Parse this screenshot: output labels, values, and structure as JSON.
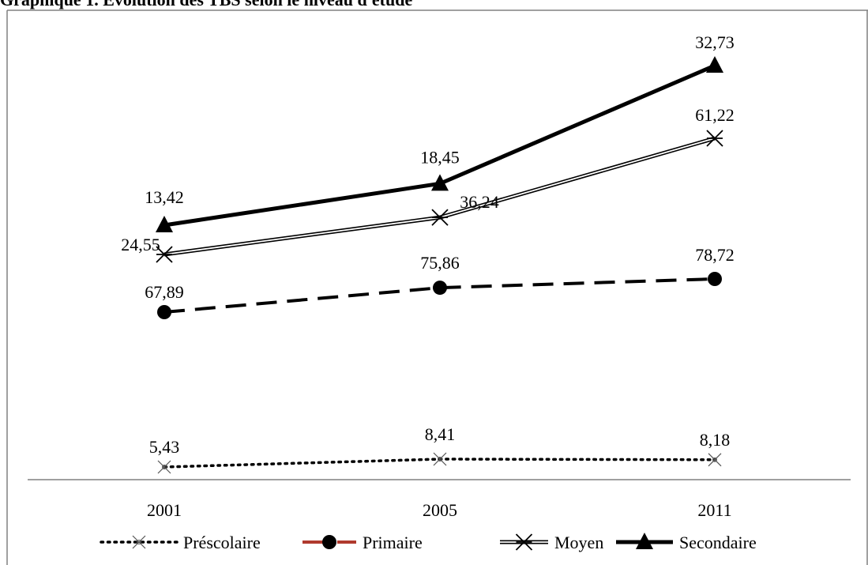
{
  "chart_data": {
    "type": "line",
    "title": "Graphique 1. Evolution des TBS selon le niveau d'étude",
    "xlabel": "",
    "ylabel": "",
    "categories": [
      "2001",
      "2005",
      "2011"
    ],
    "series": [
      {
        "name": "Préscolaire",
        "values": [
          5.43,
          8.41,
          8.18
        ],
        "labels": [
          "5,43",
          "8,41",
          "8,18"
        ],
        "marker": "x-star",
        "line": "dotted",
        "color": "#000000"
      },
      {
        "name": "Primaire",
        "values": [
          67.89,
          75.86,
          78.72
        ],
        "labels": [
          "67,89",
          "75,86",
          "78,72"
        ],
        "marker": "circle",
        "line": "dashed",
        "color": "#000000",
        "legend_color": "#b03a2e"
      },
      {
        "name": "Moyen",
        "values": [
          24.55,
          36.24,
          61.22
        ],
        "labels": [
          "24,55",
          "36,24",
          "61,22"
        ],
        "marker": "asterisk",
        "line": "double",
        "color": "#000000"
      },
      {
        "name": "Secondaire",
        "values": [
          13.42,
          18.45,
          32.73
        ],
        "labels": [
          "13,42",
          "18,45",
          "32,73"
        ],
        "marker": "triangle",
        "line": "solid-thick",
        "color": "#000000"
      }
    ],
    "legend": "bottom",
    "grid": false
  }
}
